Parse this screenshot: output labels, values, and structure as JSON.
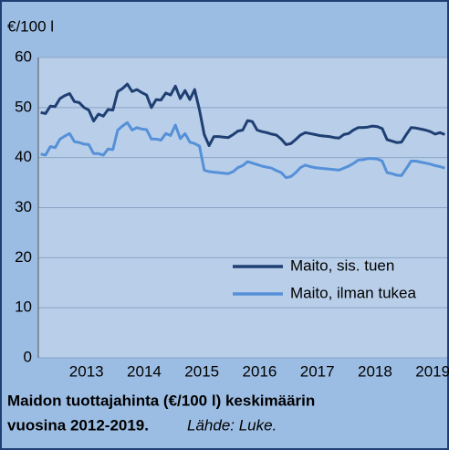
{
  "chart_data": {
    "type": "line",
    "y_label": "€/100 l",
    "caption": [
      "Maidon tuottajahinta (€/100 l) keskimäärin",
      "vuosina 2012-2019."
    ],
    "source": "Lähde: Luke.",
    "categories": [
      null,
      null,
      null,
      null,
      null,
      null,
      null,
      null,
      null,
      null,
      "2013",
      null,
      null,
      null,
      null,
      null,
      null,
      null,
      null,
      null,
      null,
      null,
      "2014",
      null,
      null,
      null,
      null,
      null,
      null,
      null,
      null,
      null,
      null,
      null,
      "2015",
      null,
      null,
      null,
      null,
      null,
      null,
      null,
      null,
      null,
      null,
      null,
      "2016",
      null,
      null,
      null,
      null,
      null,
      null,
      null,
      null,
      null,
      null,
      null,
      "2017",
      null,
      null,
      null,
      null,
      null,
      null,
      null,
      null,
      null,
      null,
      null,
      "2018",
      null,
      null,
      null,
      null,
      null,
      null,
      null,
      null,
      null,
      null,
      null,
      "2019",
      null,
      null
    ],
    "series": [
      {
        "name": "Maito, sis. tuen",
        "color": "#1f3f73",
        "values": [
          49,
          48.8,
          50.3,
          50.2,
          51.8,
          52.4,
          52.8,
          51.2,
          51,
          50,
          49.5,
          47.3,
          48.7,
          48.3,
          49.6,
          49.5,
          53.2,
          53.8,
          54.7,
          53.2,
          53.6,
          53,
          52.5,
          50,
          51.6,
          51.5,
          52.9,
          52.5,
          54.3,
          51.8,
          53.4,
          51.6,
          53.6,
          49.5,
          44.6,
          42.4,
          44.2,
          44.2,
          44.1,
          44,
          44.6,
          45.3,
          45.5,
          47.4,
          47.2,
          45.5,
          45.2,
          45,
          44.7,
          44.5,
          43.7,
          42.6,
          42.8,
          43.6,
          44.5,
          45,
          44.8,
          44.6,
          44.4,
          44.3,
          44.2,
          44,
          43.9,
          44.6,
          44.8,
          45.5,
          46,
          46,
          46.1,
          46.3,
          46.2,
          45.8,
          43.6,
          43.3,
          43,
          43.1,
          44.6,
          46,
          45.9,
          45.7,
          45.5,
          45.2,
          44.7,
          45,
          44.6
        ]
      },
      {
        "name": "Maito, ilman tukea",
        "color": "#5590d8",
        "values": [
          40.7,
          40.5,
          42.2,
          42,
          43.7,
          44.3,
          44.8,
          43.2,
          43,
          42.7,
          42.6,
          40.8,
          40.8,
          40.5,
          41.7,
          41.6,
          45.5,
          46.3,
          47,
          45.5,
          46,
          45.7,
          45.6,
          43.7,
          43.7,
          43.5,
          44.8,
          44.4,
          46.5,
          43.8,
          44.8,
          43.1,
          42.8,
          42.3,
          37.5,
          37.2,
          37.1,
          37,
          36.9,
          36.8,
          37.2,
          38,
          38.4,
          39.2,
          38.9,
          38.6,
          38.3,
          38.1,
          37.9,
          37.4,
          37,
          36,
          36.2,
          37,
          38,
          38.5,
          38.2,
          38,
          37.9,
          37.8,
          37.7,
          37.6,
          37.5,
          37.9,
          38.3,
          38.8,
          39.5,
          39.6,
          39.8,
          39.8,
          39.7,
          39.3,
          37,
          36.8,
          36.5,
          36.4,
          37.8,
          39.3,
          39.3,
          39.1,
          38.9,
          38.7,
          38.4,
          38.2,
          37.9
        ]
      }
    ],
    "ylim": [
      0,
      60
    ],
    "yticks": [
      0,
      10,
      20,
      30,
      40,
      50,
      60
    ],
    "grid": true
  }
}
